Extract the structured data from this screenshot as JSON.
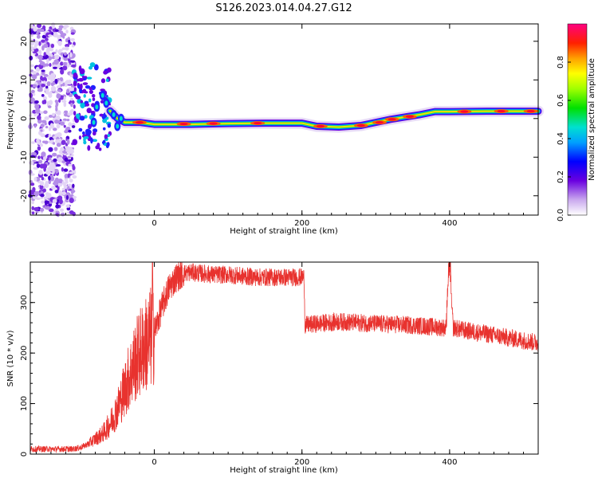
{
  "title": "S126.2023.014.04.27.G12",
  "chart_data": [
    {
      "type": "heatmap",
      "name": "spectrogram",
      "xlabel": "Height of straight line (km)",
      "ylabel": "Frequency (Hz)",
      "xlim": [
        -168,
        520
      ],
      "ylim": [
        -25,
        24.5
      ],
      "xticks": [
        0,
        200,
        400
      ],
      "yticks": [
        -20,
        -10,
        0,
        10,
        20
      ],
      "colorbar": {
        "label": "Normalized spectral amplitude",
        "range": [
          0,
          1
        ],
        "ticks": [
          "0.0",
          "0.2",
          "0.4",
          "0.6",
          "0.8"
        ]
      },
      "ridge": {
        "x": [
          -95,
          -80,
          -60,
          -50,
          -40,
          -20,
          0,
          50,
          100,
          150,
          200,
          220,
          250,
          280,
          300,
          320,
          340,
          360,
          380,
          400,
          450,
          500,
          520
        ],
        "y": [
          -2,
          1.5,
          2,
          0,
          -1,
          -1,
          -1.5,
          -1.5,
          -1.3,
          -1.2,
          -1.2,
          -2,
          -2.2,
          -1.8,
          -1,
          -0.2,
          0.4,
          1.0,
          1.8,
          1.8,
          1.9,
          1.9,
          1.9
        ]
      }
    },
    {
      "type": "line",
      "name": "snr",
      "xlabel": "Height of straight line (km)",
      "ylabel": "SNR (10 * v/v)",
      "xlim": [
        -168,
        520
      ],
      "ylim": [
        0,
        380
      ],
      "xticks": [
        0,
        200,
        400
      ],
      "yticks": [
        0,
        100,
        200,
        300
      ],
      "color": "#e8322e",
      "series": [
        {
          "x": [
            -168,
            -150,
            -130,
            -110,
            -100,
            -90,
            -80,
            -70,
            -60,
            -50,
            -40,
            -30,
            -20,
            -10,
            0,
            10,
            20,
            30,
            40,
            50,
            60,
            80,
            100,
            120,
            140,
            160,
            180,
            203,
            204,
            220,
            250,
            300,
            350,
            395,
            400,
            405,
            420,
            450,
            480,
            500,
            520
          ],
          "y": [
            10,
            10,
            10,
            10,
            13,
            20,
            30,
            40,
            60,
            90,
            130,
            170,
            200,
            220,
            240,
            290,
            330,
            350,
            358,
            360,
            358,
            355,
            355,
            352,
            350,
            350,
            350,
            350,
            255,
            258,
            262,
            258,
            255,
            250,
            350,
            250,
            245,
            238,
            230,
            225,
            220
          ]
        }
      ]
    }
  ]
}
